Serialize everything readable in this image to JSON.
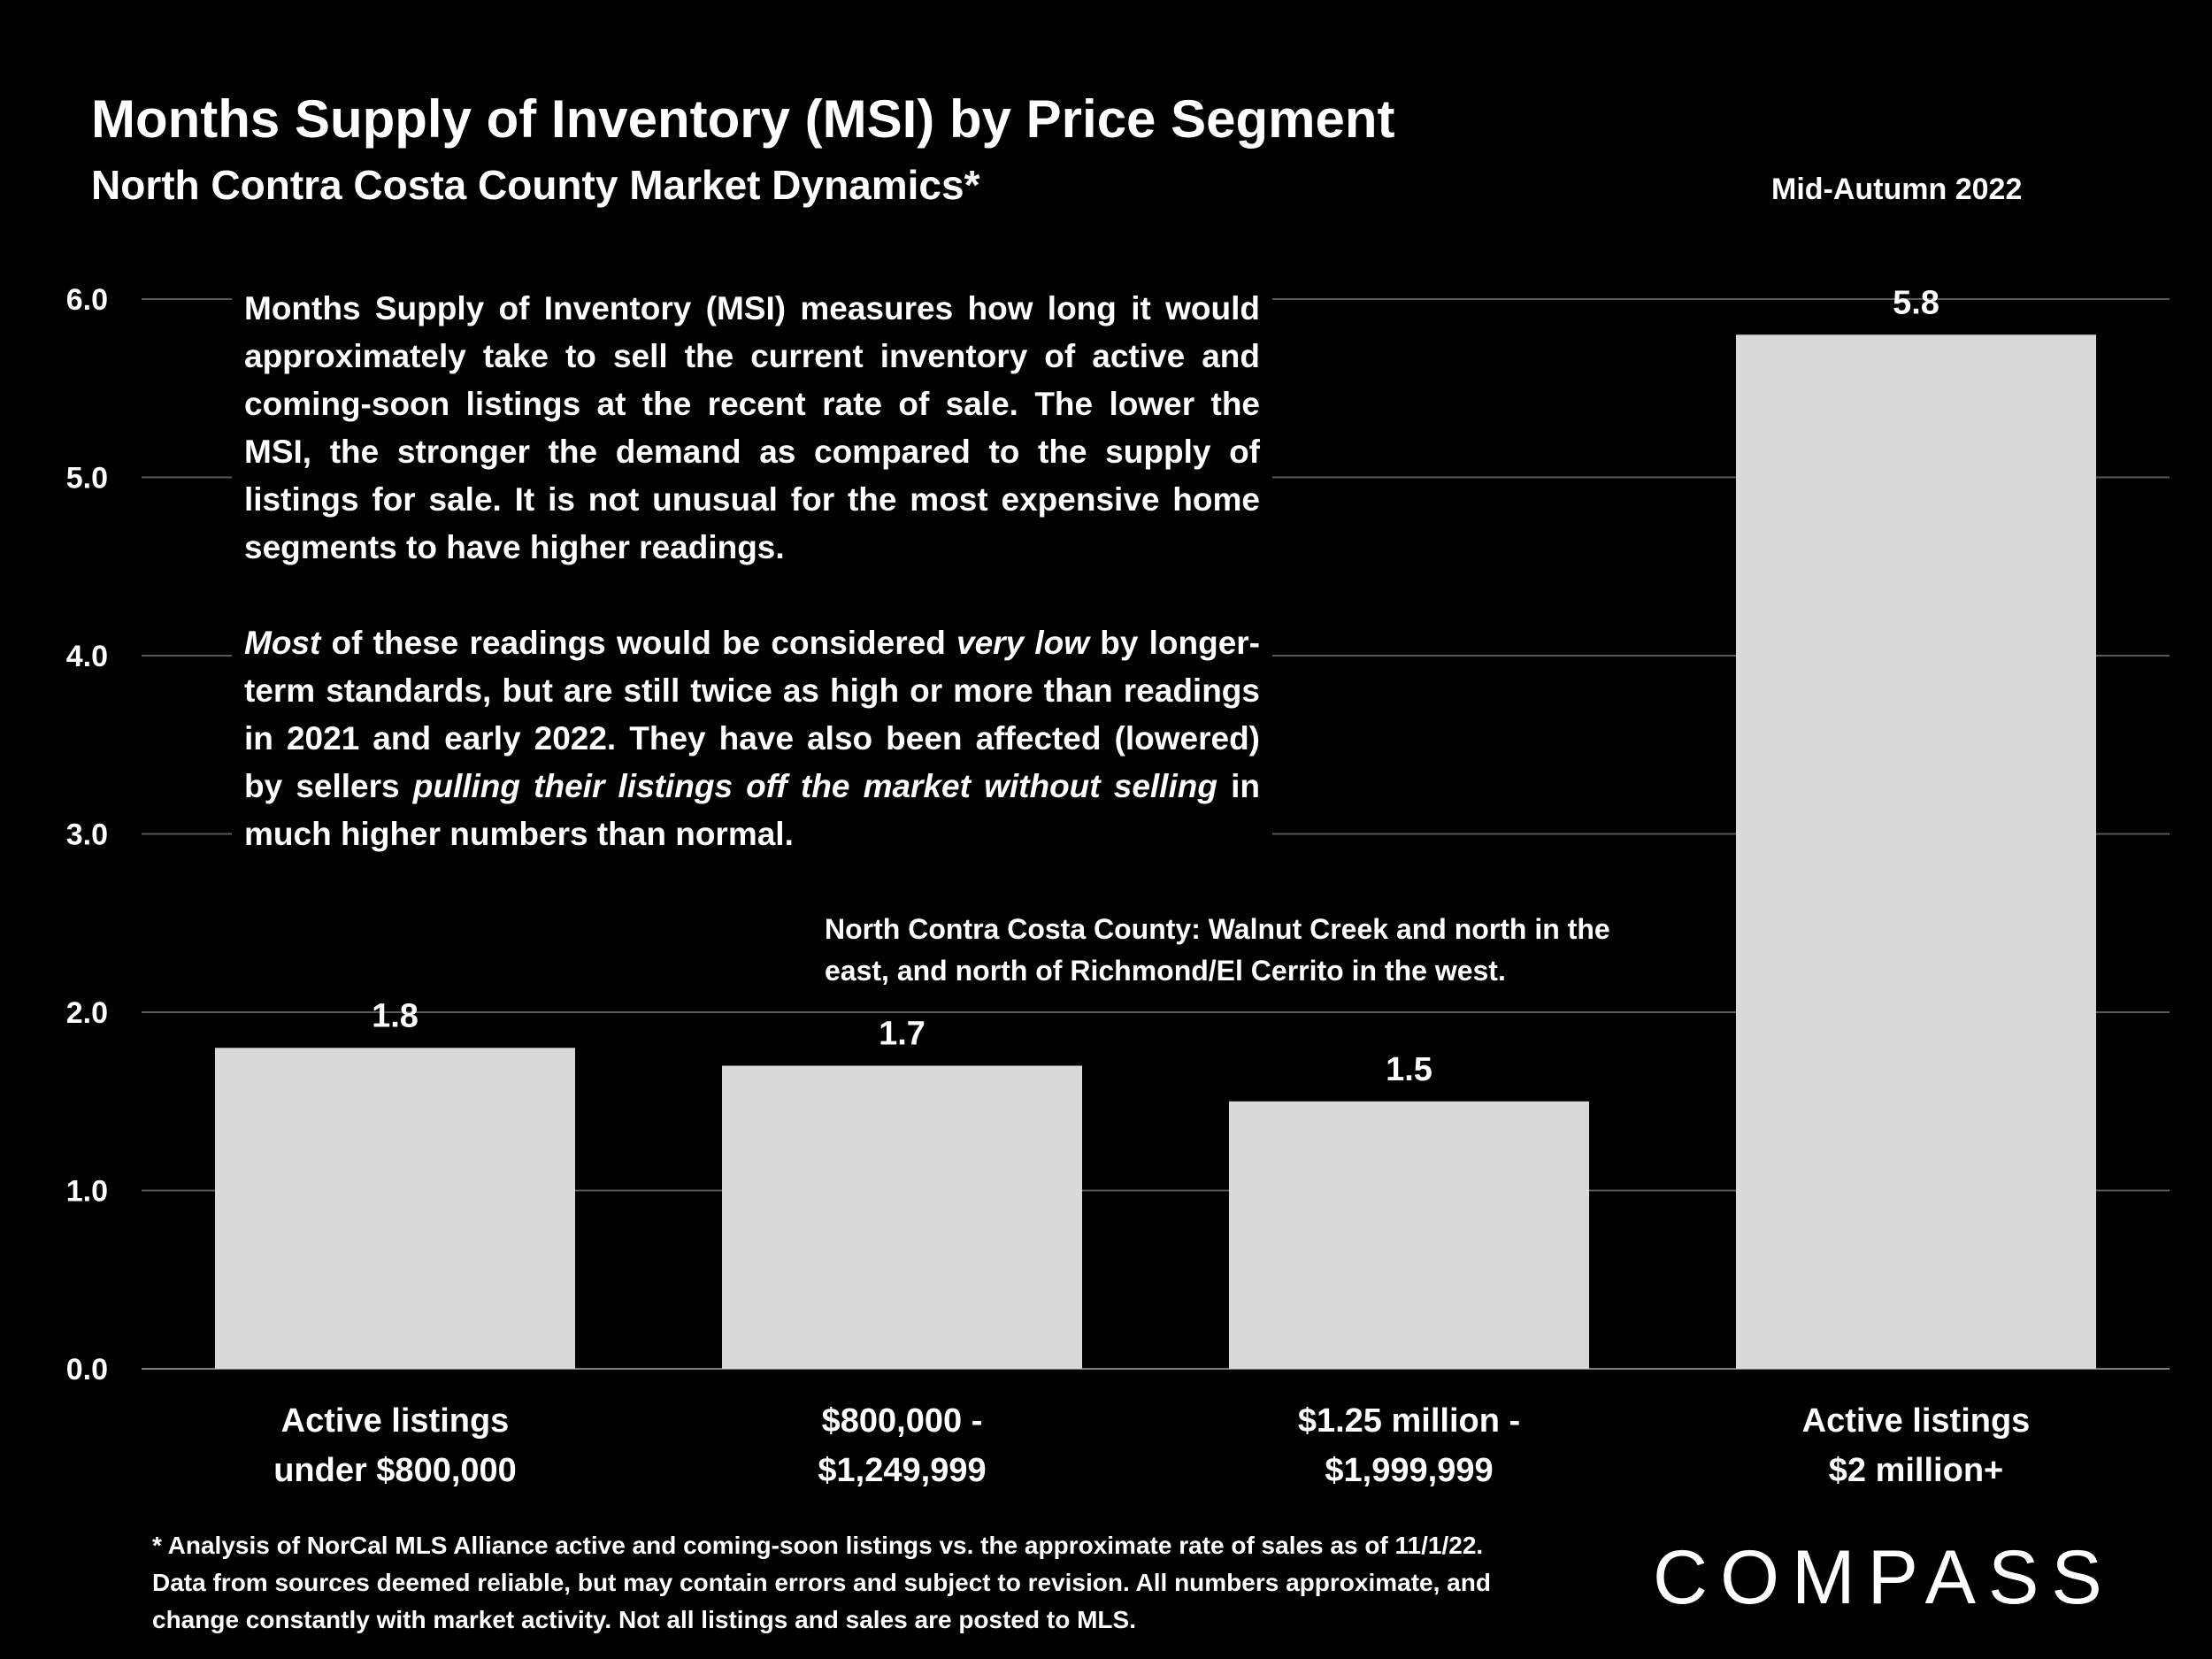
{
  "header": {
    "title": "Months Supply of Inventory (MSI) by Price Segment",
    "subtitle": "North Contra Costa County Market Dynamics*",
    "period": "Mid-Autumn 2022"
  },
  "explanation": {
    "p1": "Months Supply of Inventory (MSI) measures how long it would approximately take to sell the current inventory of active and coming-soon listings at the recent rate of sale. The lower the MSI, the stronger the demand as compared to the supply of listings for sale. It is not unusual for the most expensive home segments to have higher readings.",
    "p2_parts": [
      {
        "text": "Most",
        "italic": true
      },
      {
        "text": " of these readings would be considered ",
        "italic": false
      },
      {
        "text": "very low",
        "italic": true
      },
      {
        "text": " by longer-term standards, but are still twice as high or more than readings in 2021 and early 2022. They have also been affected (lowered) by sellers ",
        "italic": false
      },
      {
        "text": "pulling their listings off the market without selling",
        "italic": true
      },
      {
        "text": " in much higher numbers than normal.",
        "italic": false
      }
    ]
  },
  "region_note": "North Contra Costa County: Walnut Creek and north in the east, and north of Richmond/El Cerrito in the west.",
  "footnote": "* Analysis of NorCal MLS Alliance active and coming-soon listings vs. the approximate rate of sales as of 11/1/22. Data from sources deemed reliable, but may contain errors and subject to revision. All numbers approximate, and change constantly with market activity. Not all listings and sales are posted to MLS.",
  "logo": "COMPASS",
  "chart_data": {
    "type": "bar",
    "categories": [
      [
        "Active listings",
        "under $800,000"
      ],
      [
        "$800,000 -",
        "$1,249,999"
      ],
      [
        "$1.25 million -",
        "$1,999,999"
      ],
      [
        "Active listings",
        "$2 million+"
      ]
    ],
    "values": [
      1.8,
      1.7,
      1.5,
      5.8
    ],
    "value_labels": [
      "1.8",
      "1.7",
      "1.5",
      "5.8"
    ],
    "yticks": [
      "0.0",
      "1.0",
      "2.0",
      "3.0",
      "4.0",
      "5.0",
      "6.0"
    ],
    "ylim": [
      0,
      6
    ],
    "grid": true,
    "bar_color": "#d9d9d9",
    "grid_color": "#595959",
    "background": "#000000"
  }
}
